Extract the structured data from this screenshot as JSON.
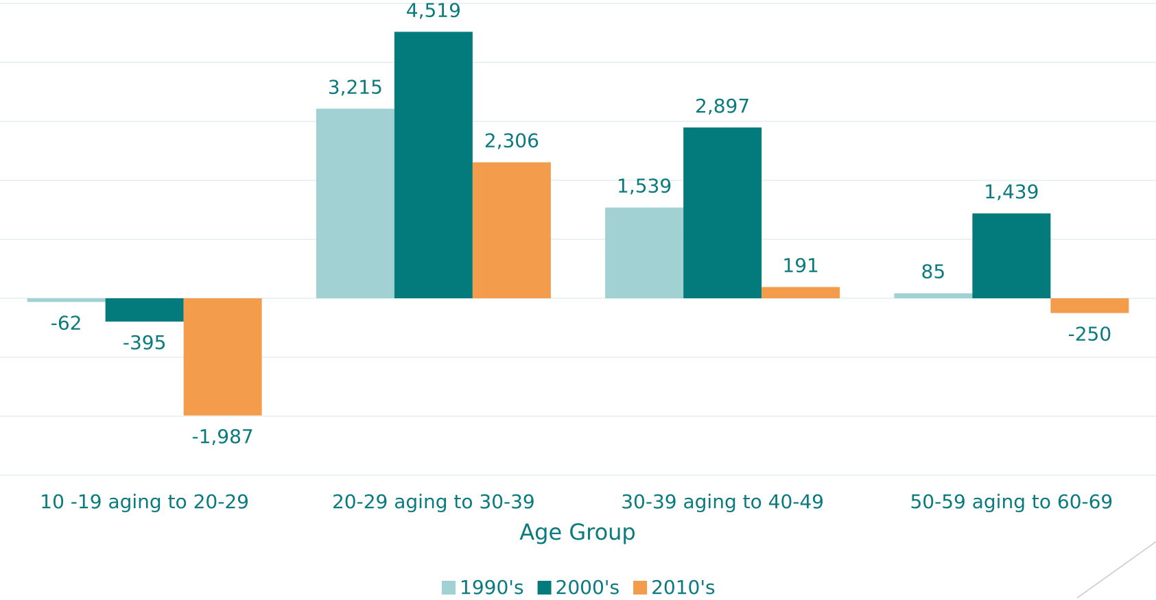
{
  "chart_data": {
    "type": "bar",
    "x_label": "Age Group",
    "categories": [
      "10 -19 aging to 20-29",
      "20-29 aging to 30-39",
      "30-39 aging to 40-49",
      "50-59 aging to 60-69"
    ],
    "series": [
      {
        "name": "1990's",
        "color": "#a1d1d3",
        "values": [
          -62,
          3215,
          1539,
          85
        ],
        "value_labels": [
          "-62",
          "3,215",
          "1,539",
          "85"
        ]
      },
      {
        "name": "2000's",
        "color": "#037b7c",
        "values": [
          -395,
          4519,
          2897,
          1439
        ],
        "value_labels": [
          "-395",
          "4,519",
          "2,897",
          "1,439"
        ]
      },
      {
        "name": "2010's",
        "color": "#f39c4b",
        "values": [
          -1987,
          2306,
          191,
          -250
        ],
        "value_labels": [
          "-1,987",
          "2,306",
          "191",
          "-250"
        ]
      }
    ],
    "ylim": [
      -3000,
      5000
    ],
    "yticks": [
      -3000,
      -2000,
      -1000,
      0,
      1000,
      2000,
      3000,
      4000,
      5000
    ],
    "grid": true,
    "legend": "bottom"
  }
}
